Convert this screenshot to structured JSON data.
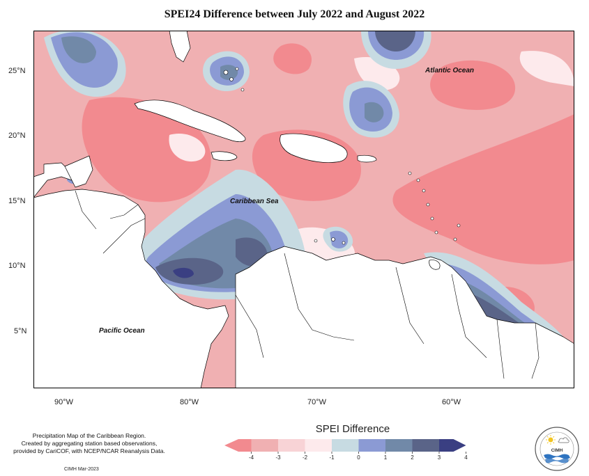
{
  "title": "SPEI24 Difference between July 2022 and August 2022",
  "map": {
    "lon_ticks": [
      "90°W",
      "80°W",
      "70°W",
      "60°W"
    ],
    "lat_ticks": [
      "25°N",
      "20°N",
      "15°N",
      "10°N",
      "5°N"
    ],
    "ocean_labels": {
      "atlantic": "Atlantic Ocean",
      "caribbean": "Caribbean Sea",
      "pacific": "Pacific Ocean"
    }
  },
  "legend": {
    "title": "SPEI Difference",
    "ticks": [
      "-4",
      "-3",
      "-2",
      "-1",
      "0",
      "1",
      "2",
      "3",
      "4"
    ],
    "colors": [
      "#f28a8f",
      "#f0b0b2",
      "#f8d3d6",
      "#fdeaec",
      "#c7dbe2",
      "#8b9ad4",
      "#7189a8",
      "#5a6488",
      "#3a3f82"
    ]
  },
  "footer": {
    "line1": "Precipitation Map of the Caribbean Region.",
    "line2": "Created by aggregating station based observations,",
    "line3": "provided by CariCOF, with NCEP/NCAR Reanalysis Data.",
    "credit": "CIMH Mar-2023"
  },
  "logo": {
    "text": "CIMH"
  }
}
